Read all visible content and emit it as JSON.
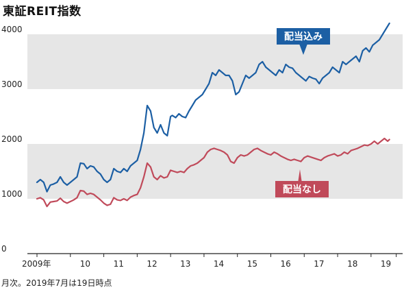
{
  "title": "東証REIT指数",
  "note": "月次。2019年7月は19日時点",
  "chart_data": {
    "type": "line",
    "title": "東証REIT指数",
    "ylim": [
      0,
      4200
    ],
    "yticks": [
      "0",
      "1000",
      "2000",
      "3000",
      "4000"
    ],
    "xticks": [
      "2009年",
      "10",
      "11",
      "12",
      "13",
      "14",
      "15",
      "16",
      "17",
      "18",
      "19"
    ],
    "bands": [
      [
        1000,
        2000
      ],
      [
        3000,
        4000
      ]
    ],
    "colors": {
      "band": "#e6e6e6",
      "配当込み": "#1c5fa4",
      "配当なし": "#c04a5a"
    },
    "series": [
      {
        "name": "配当込み",
        "x": [
          2009.0,
          2009.1,
          2009.2,
          2009.3,
          2009.4,
          2009.5,
          2009.6,
          2009.7,
          2009.8,
          2009.9,
          2010.0,
          2010.1,
          2010.2,
          2010.3,
          2010.4,
          2010.5,
          2010.6,
          2010.7,
          2010.8,
          2010.9,
          2011.0,
          2011.1,
          2011.2,
          2011.3,
          2011.4,
          2011.5,
          2011.6,
          2011.7,
          2011.8,
          2011.9,
          2012.0,
          2012.1,
          2012.2,
          2012.3,
          2012.4,
          2012.5,
          2012.6,
          2012.7,
          2012.8,
          2012.9,
          2013.0,
          2013.05,
          2013.15,
          2013.25,
          2013.35,
          2013.45,
          2013.55,
          2013.65,
          2013.75,
          2013.85,
          2013.95,
          2014.05,
          2014.15,
          2014.25,
          2014.35,
          2014.45,
          2014.55,
          2014.65,
          2014.75,
          2014.85,
          2014.95,
          2015.05,
          2015.15,
          2015.25,
          2015.35,
          2015.45,
          2015.55,
          2015.65,
          2015.75,
          2015.85,
          2015.95,
          2016.05,
          2016.15,
          2016.25,
          2016.35,
          2016.45,
          2016.55,
          2016.65,
          2016.75,
          2016.85,
          2016.95,
          2017.05,
          2017.15,
          2017.25,
          2017.35,
          2017.45,
          2017.55,
          2017.65,
          2017.75,
          2017.85,
          2017.95,
          2018.05,
          2018.15,
          2018.25,
          2018.35,
          2018.45,
          2018.55,
          2018.65,
          2018.75,
          2018.85,
          2018.95,
          2019.05,
          2019.15,
          2019.25,
          2019.35,
          2019.45,
          2019.55
        ],
        "values": [
          1300,
          1350,
          1300,
          1130,
          1250,
          1270,
          1300,
          1400,
          1300,
          1250,
          1300,
          1350,
          1400,
          1650,
          1640,
          1550,
          1600,
          1580,
          1500,
          1450,
          1350,
          1300,
          1350,
          1550,
          1500,
          1480,
          1550,
          1500,
          1600,
          1650,
          1700,
          1900,
          2200,
          2700,
          2600,
          2300,
          2200,
          2350,
          2200,
          2150,
          2500,
          2520,
          2480,
          2550,
          2500,
          2480,
          2600,
          2700,
          2800,
          2850,
          2900,
          3000,
          3100,
          3300,
          3250,
          3350,
          3300,
          3250,
          3250,
          3150,
          2900,
          2950,
          3100,
          3250,
          3200,
          3250,
          3300,
          3450,
          3500,
          3400,
          3350,
          3300,
          3250,
          3350,
          3300,
          3450,
          3400,
          3380,
          3300,
          3250,
          3200,
          3150,
          3230,
          3200,
          3180,
          3100,
          3200,
          3250,
          3300,
          3400,
          3350,
          3300,
          3500,
          3450,
          3500,
          3550,
          3600,
          3500,
          3700,
          3750,
          3680,
          3800,
          3850,
          3900,
          4000,
          4100,
          4200
        ]
      },
      {
        "name": "配当なし",
        "x": [
          2009.0,
          2009.1,
          2009.2,
          2009.3,
          2009.4,
          2009.5,
          2009.6,
          2009.7,
          2009.8,
          2009.9,
          2010.0,
          2010.1,
          2010.2,
          2010.3,
          2010.4,
          2010.5,
          2010.6,
          2010.7,
          2010.8,
          2010.9,
          2011.0,
          2011.1,
          2011.2,
          2011.3,
          2011.4,
          2011.5,
          2011.6,
          2011.7,
          2011.8,
          2011.9,
          2012.0,
          2012.1,
          2012.2,
          2012.3,
          2012.4,
          2012.5,
          2012.6,
          2012.7,
          2012.8,
          2012.9,
          2013.0,
          2013.1,
          2013.2,
          2013.3,
          2013.4,
          2013.5,
          2013.6,
          2013.7,
          2013.8,
          2013.9,
          2014.0,
          2014.1,
          2014.2,
          2014.3,
          2014.4,
          2014.5,
          2014.6,
          2014.7,
          2014.8,
          2014.9,
          2015.0,
          2015.1,
          2015.2,
          2015.3,
          2015.4,
          2015.5,
          2015.6,
          2015.7,
          2015.8,
          2015.9,
          2016.0,
          2016.1,
          2016.2,
          2016.3,
          2016.4,
          2016.5,
          2016.6,
          2016.7,
          2016.8,
          2016.9,
          2017.0,
          2017.1,
          2017.2,
          2017.3,
          2017.4,
          2017.5,
          2017.6,
          2017.7,
          2017.8,
          2017.9,
          2018.0,
          2018.1,
          2018.2,
          2018.3,
          2018.4,
          2018.5,
          2018.6,
          2018.7,
          2018.8,
          2018.9,
          2019.0,
          2019.1,
          2019.2,
          2019.3,
          2019.4,
          2019.5,
          2019.55
        ],
        "values": [
          1000,
          1020,
          980,
          860,
          940,
          950,
          960,
          1010,
          950,
          920,
          950,
          980,
          1020,
          1150,
          1140,
          1080,
          1100,
          1080,
          1030,
          980,
          920,
          880,
          900,
          1020,
          980,
          970,
          1000,
          970,
          1030,
          1060,
          1080,
          1200,
          1400,
          1650,
          1580,
          1400,
          1350,
          1420,
          1380,
          1400,
          1520,
          1500,
          1480,
          1500,
          1480,
          1550,
          1600,
          1620,
          1650,
          1700,
          1750,
          1850,
          1900,
          1920,
          1900,
          1880,
          1850,
          1800,
          1680,
          1650,
          1750,
          1800,
          1780,
          1800,
          1850,
          1900,
          1920,
          1880,
          1850,
          1820,
          1800,
          1850,
          1820,
          1780,
          1750,
          1720,
          1700,
          1720,
          1700,
          1680,
          1750,
          1780,
          1760,
          1740,
          1720,
          1700,
          1750,
          1780,
          1800,
          1820,
          1780,
          1800,
          1850,
          1820,
          1880,
          1900,
          1920,
          1950,
          1980,
          1970,
          2000,
          2050,
          2000,
          2050,
          2100,
          2050,
          2080
        ]
      }
    ]
  },
  "labels": {
    "with_dividends": "配当込み",
    "without_dividends": "配当なし"
  }
}
